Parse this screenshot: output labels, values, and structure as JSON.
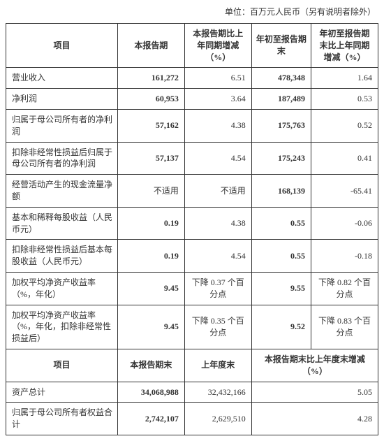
{
  "unit_text": "单位：百万元人民币（另有说明者除外）",
  "headers1": {
    "item": "项目",
    "this_period": "本报告期",
    "period_change": "本报告期比上年同期增减（%）",
    "ytd": "年初至报告期末",
    "ytd_change": "年初至报告期末比上年同期增减（%）"
  },
  "rows1": [
    {
      "label": "营业收入",
      "v1": "161,272",
      "v2": "6.51",
      "v3": "478,348",
      "v4": "1.64",
      "bold": true
    },
    {
      "label": "净利润",
      "v1": "60,953",
      "v2": "3.64",
      "v3": "187,489",
      "v4": "0.53",
      "bold": true
    },
    {
      "label": "归属于母公司所有者的净利润",
      "v1": "57,162",
      "v2": "4.38",
      "v3": "175,763",
      "v4": "0.52",
      "bold": true
    },
    {
      "label": "扣除非经常性损益后归属于母公司所有者的净利润",
      "v1": "57,137",
      "v2": "4.54",
      "v3": "175,243",
      "v4": "0.41",
      "indent": true,
      "bold": true
    },
    {
      "label": "经营活动产生的现金流量净额",
      "v1": "不适用",
      "v2": "不适用",
      "v3": "168,139",
      "v4": "-65.41",
      "na": true,
      "bold": true
    },
    {
      "label": "基本和稀释每股收益（人民币元）",
      "v1": "0.19",
      "v2": "4.38",
      "v3": "0.55",
      "v4": "-0.06",
      "indent": true,
      "bold": true
    },
    {
      "label": "扣除非经常性损益后基本每股收益（人民币元）",
      "v1": "0.19",
      "v2": "4.54",
      "v3": "0.55",
      "v4": "-0.18",
      "indent": true,
      "bold": true
    },
    {
      "label": "加权平均净资产收益率（%，年化）",
      "v1": "9.45",
      "v2": "下降 0.37 个百分点",
      "v3": "9.55",
      "v4": "下降 0.82 个百分点",
      "indent": true,
      "bold": true,
      "text2": true
    },
    {
      "label": "加权平均净资产收益率（%，年化，扣除非经常性损益后）",
      "v1": "9.45",
      "v2": "下降 0.35 个百分点",
      "v3": "9.52",
      "v4": "下降 0.83 个百分点",
      "indent": true,
      "bold": true,
      "text2": true
    }
  ],
  "headers2": {
    "item": "项目",
    "period_end": "本报告期末",
    "year_end": "上年度末",
    "end_change": "本报告期末比上年度末增减（%）"
  },
  "rows2": [
    {
      "label": "资产总计",
      "v1": "34,068,988",
      "v2": "32,432,166",
      "v3": "5.05",
      "bold": true
    },
    {
      "label": "归属于母公司所有者权益合计",
      "v1": "2,742,107",
      "v2": "2,629,510",
      "v3": "4.28",
      "bold": true
    }
  ]
}
